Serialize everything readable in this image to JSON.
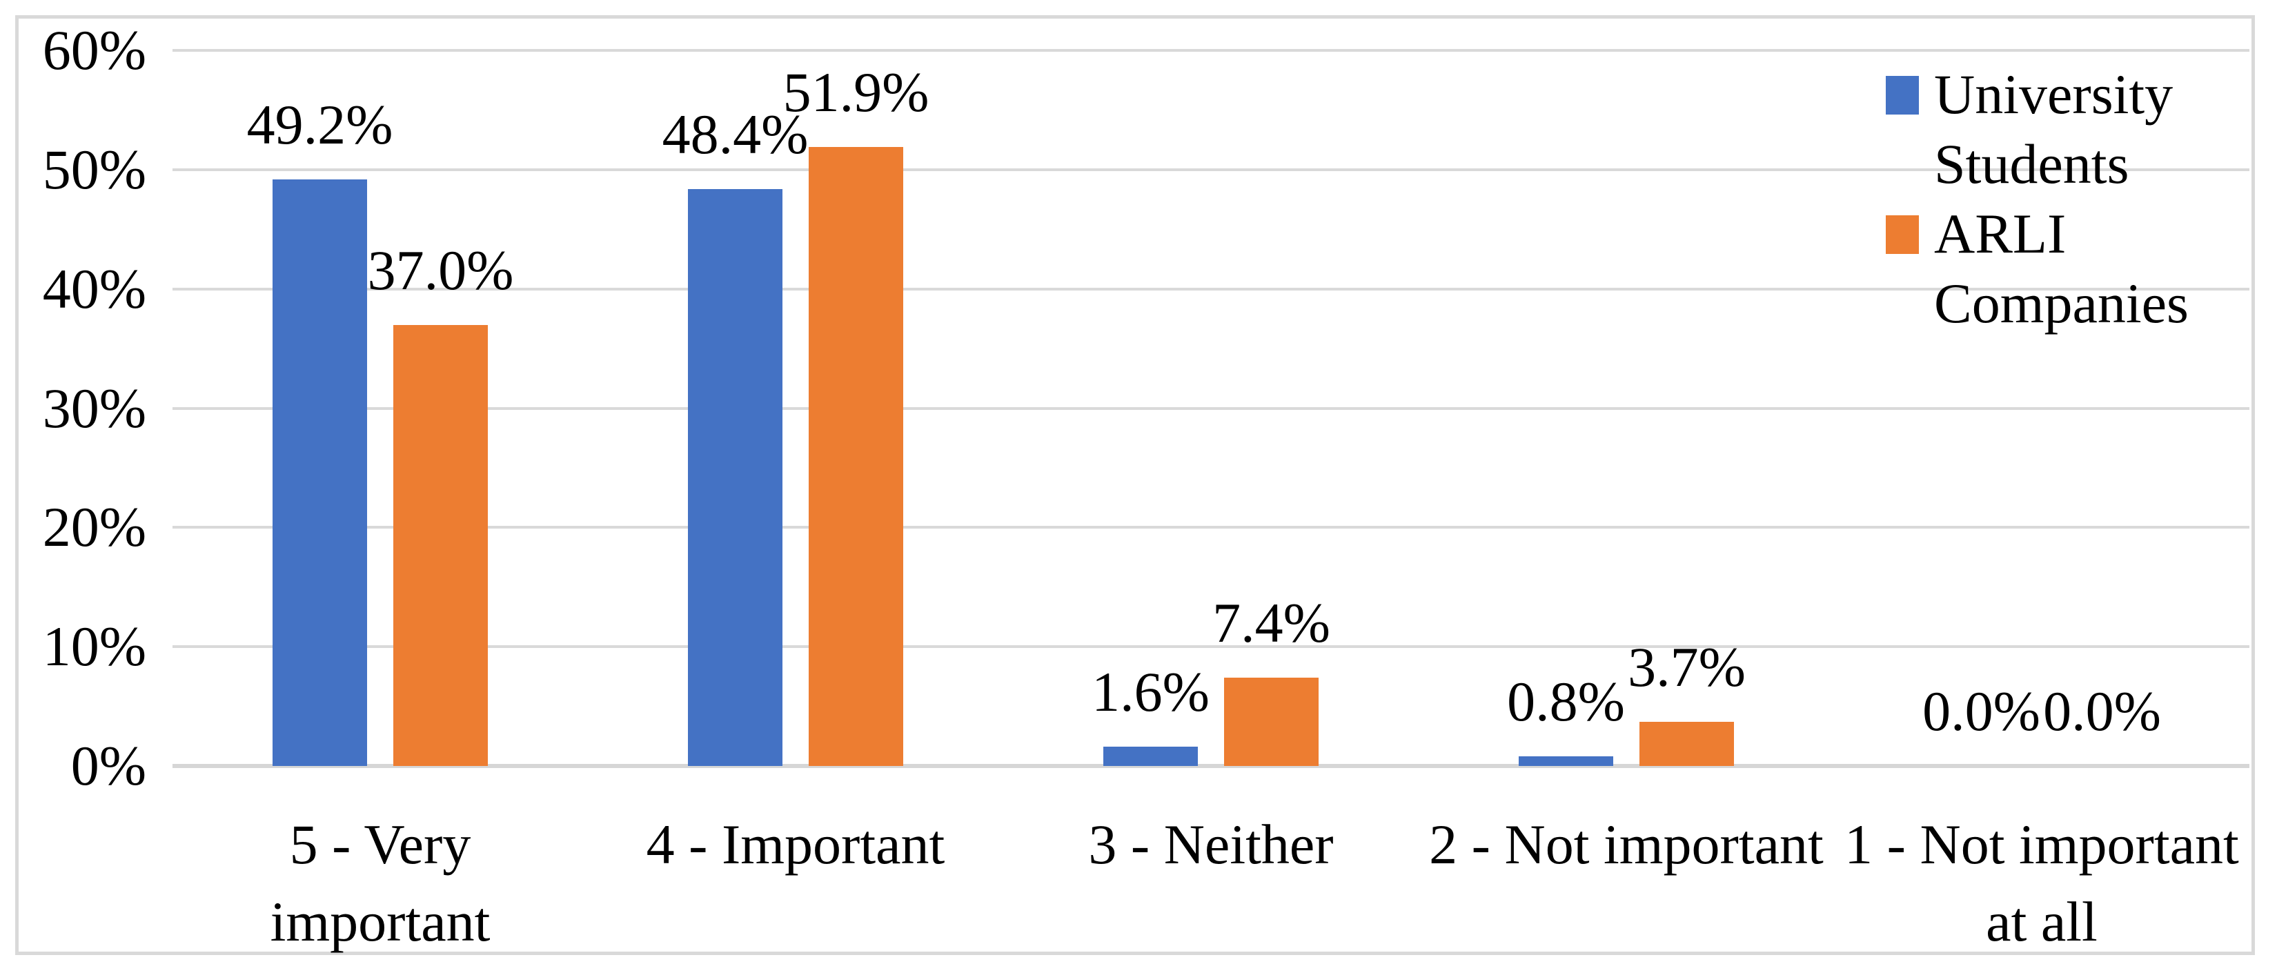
{
  "chart": {
    "background_color": "#FFFFFF",
    "border_color": "#D9D9D9",
    "gridline_color": "#D9D9D9",
    "axis_line_color": "#D6D6D6",
    "text_color": "#000000"
  },
  "chart_data": {
    "type": "bar",
    "title": "",
    "xlabel": "",
    "ylabel": "",
    "ylim": [
      0,
      60
    ],
    "grid": true,
    "legend_position": "top-right",
    "y_axis_ticks": [
      {
        "label": "60%",
        "value": 60
      },
      {
        "label": "50%",
        "value": 50
      },
      {
        "label": "40%",
        "value": 40
      },
      {
        "label": "30%",
        "value": 30
      },
      {
        "label": "20%",
        "value": 20
      },
      {
        "label": "10%",
        "value": 10
      },
      {
        "label": "0%",
        "value": 0
      }
    ],
    "categories": [
      {
        "label": "5 - Very important",
        "lines": "5 - Very\nimportant"
      },
      {
        "label": "4 - Important",
        "lines": "4 - Important"
      },
      {
        "label": "3 - Neither",
        "lines": "3 - Neither"
      },
      {
        "label": "2 - Not important",
        "lines": "2 - Not important"
      },
      {
        "label": "1 - Not important at all",
        "lines": "1 - Not important\nat all"
      }
    ],
    "series": [
      {
        "name": "University Students",
        "legend_lines": "University\nStudents",
        "color": "#4472C4",
        "values": [
          49.2,
          48.4,
          1.6,
          0.8,
          0.0
        ],
        "value_labels": [
          "49.2%",
          "48.4%",
          "1.6%",
          "0.8%",
          "0.0%"
        ]
      },
      {
        "name": "ARLI Companies",
        "legend_lines": "ARLI\nCompanies",
        "color": "#ED7D31",
        "values": [
          37.0,
          51.9,
          7.4,
          3.7,
          0.0
        ],
        "value_labels": [
          "37.0%",
          "51.9%",
          "7.4%",
          "3.7%",
          "0.0%"
        ]
      }
    ]
  }
}
